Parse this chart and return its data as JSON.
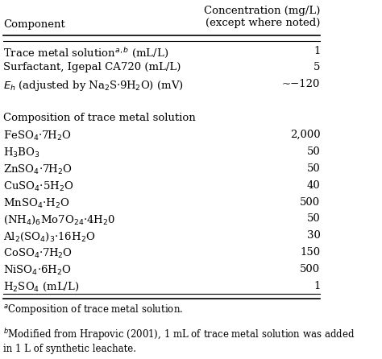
{
  "col_header_left": "Component",
  "col_header_right": "Concentration (mg/L)\n(except where noted)",
  "rows": [
    {
      "component": "Trace metal solution$^{a,b}$ (mL/L)",
      "value": "1"
    },
    {
      "component": "Surfactant, Igepal CA720 (mL/L)",
      "value": "5"
    },
    {
      "component": "$E_h$ (adjusted by Na$_2$S·9H$_2$O) (mV)",
      "value": "~−120"
    },
    {
      "component": "",
      "value": ""
    },
    {
      "component": "Composition of trace metal solution",
      "value": ""
    },
    {
      "component": "FeSO$_4$·7H$_2$O",
      "value": "2,000"
    },
    {
      "component": "H$_3$BO$_3$",
      "value": "50"
    },
    {
      "component": "ZnSO$_4$·7H$_2$O",
      "value": "50"
    },
    {
      "component": "CuSO$_4$·5H$_2$O",
      "value": "40"
    },
    {
      "component": "MnSO$_4$·H$_2$O",
      "value": "500"
    },
    {
      "component": "(NH$_4$)$_6$Mo7O$_{24}$·4H$_2$0",
      "value": "50"
    },
    {
      "component": "Al$_2$(SO$_4$)$_3$·16H$_2$O",
      "value": "30"
    },
    {
      "component": "CoSO$_4$·7H$_2$O",
      "value": "150"
    },
    {
      "component": "NiSO$_4$·6H$_2$O",
      "value": "500"
    },
    {
      "component": "H$_2$SO$_4$ (mL/L)",
      "value": "1"
    }
  ],
  "footnote_a": "$^a$Composition of trace metal solution.",
  "footnote_b": "$^b$Modified from Hrapovic (2001), 1 mL of trace metal solution was added\nin 1 L of synthetic leachate.",
  "bg_color": "#ffffff",
  "text_color": "#000000",
  "font_size": 9.5,
  "header_font_size": 9.5,
  "footnote_font_size": 8.5
}
